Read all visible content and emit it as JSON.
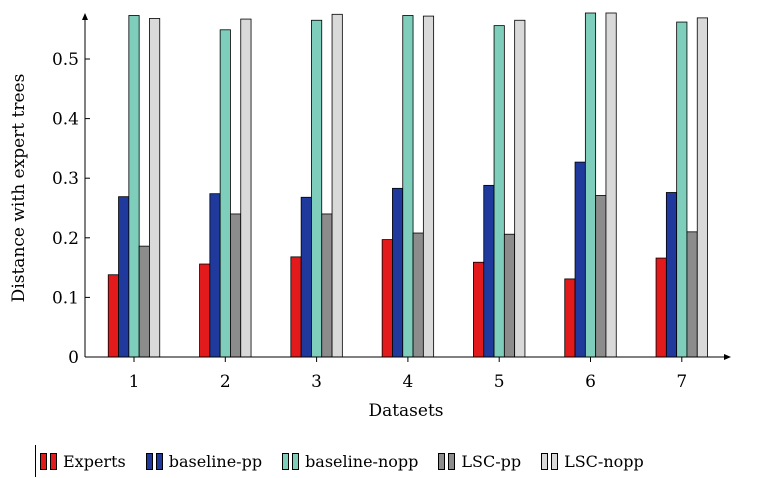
{
  "chart_data": {
    "type": "bar",
    "title": "",
    "xlabel": "Datasets",
    "ylabel": "Distance with expert trees",
    "categories": [
      "1",
      "2",
      "3",
      "4",
      "5",
      "6",
      "7"
    ],
    "ylim": [
      0,
      0.58
    ],
    "yticks": [
      "0",
      "0.1",
      "0.2",
      "0.3",
      "0.4",
      "0.5"
    ],
    "ytick_values": [
      0,
      0.1,
      0.2,
      0.3,
      0.4,
      0.5
    ],
    "legend_position": "bottom",
    "series": [
      {
        "name": "Experts",
        "color": "#e31a1c",
        "values": [
          0.138,
          0.156,
          0.168,
          0.197,
          0.159,
          0.131,
          0.166
        ]
      },
      {
        "name": "baseline-pp",
        "color": "#1f3a9c",
        "values": [
          0.269,
          0.274,
          0.268,
          0.283,
          0.288,
          0.327,
          0.276
        ]
      },
      {
        "name": "baseline-nopp",
        "color": "#7fcdbb",
        "values": [
          0.573,
          0.549,
          0.565,
          0.573,
          0.556,
          0.583,
          0.562
        ]
      },
      {
        "name": "LSC-pp",
        "color": "#8c8c8c",
        "values": [
          0.186,
          0.24,
          0.24,
          0.208,
          0.206,
          0.271,
          0.21
        ]
      },
      {
        "name": "LSC-nopp",
        "color": "#d9d9d9",
        "values": [
          0.568,
          0.567,
          0.575,
          0.572,
          0.565,
          0.583,
          0.569
        ]
      }
    ]
  }
}
